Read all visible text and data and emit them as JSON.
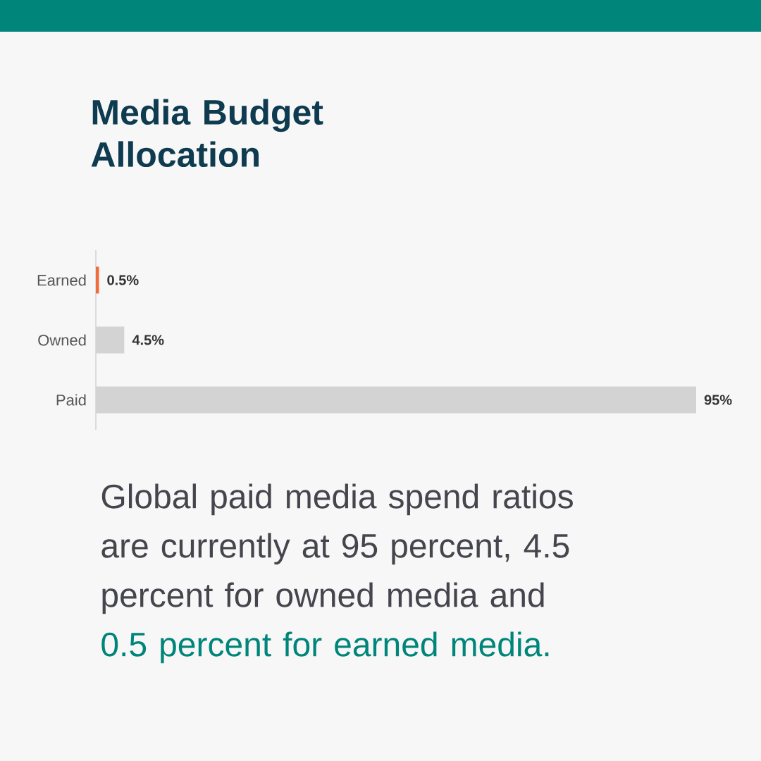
{
  "chart_data": {
    "type": "bar",
    "orientation": "horizontal",
    "title": "Media Budget Allocation",
    "categories": [
      "Earned",
      "Owned",
      "Paid"
    ],
    "values": [
      0.5,
      4.5,
      95
    ],
    "colors": [
      "#f26b3a",
      "#d3d3d3",
      "#d3d3d3"
    ],
    "value_labels": [
      "0.5%",
      "4.5%",
      "95%"
    ],
    "tick_labels": "y",
    "annotations": [
      "Global paid media spend ratios are currently at 95 percent, 4.5 percent for owned media and",
      "0.5 percent for earned media."
    ]
  }
}
